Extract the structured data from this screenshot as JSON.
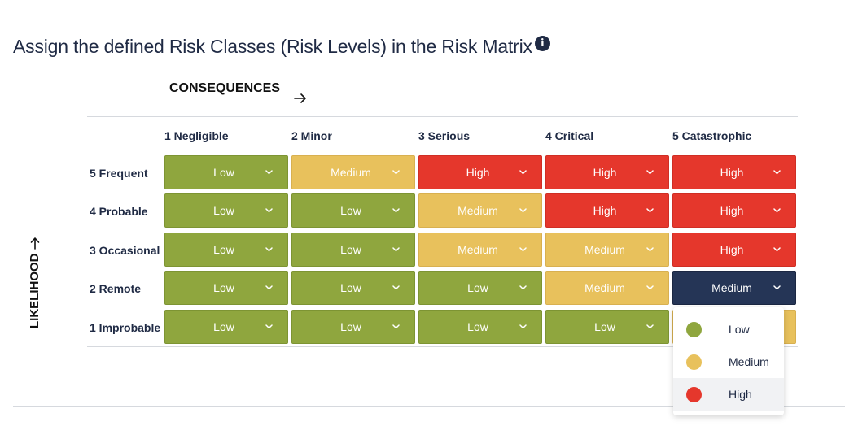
{
  "page_title": "Assign the defined Risk Classes (Risk Levels) in the Risk Matrix",
  "info_icon": "info-icon",
  "consequences_label": "CONSEQUENCES",
  "likelihood_label": "LIKELIHOOD",
  "colors": {
    "low": "#8fa63e",
    "medium": "#e8c15c",
    "high": "#e5372c",
    "selected": "#253556"
  },
  "columns": [
    "1 Negligible",
    "2 Minor",
    "3 Serious",
    "4 Critical",
    "5 Catastrophic"
  ],
  "rows": [
    {
      "label": "5 Frequent",
      "cells": [
        "Low",
        "Medium",
        "High",
        "High",
        "High"
      ]
    },
    {
      "label": "4 Probable",
      "cells": [
        "Low",
        "Low",
        "Medium",
        "High",
        "High"
      ]
    },
    {
      "label": "3 Occasional",
      "cells": [
        "Low",
        "Low",
        "Medium",
        "Medium",
        "High"
      ]
    },
    {
      "label": "2 Remote",
      "cells": [
        "Low",
        "Low",
        "Low",
        "Medium",
        "Medium"
      ]
    },
    {
      "label": "1 Improbable",
      "cells": [
        "Low",
        "Low",
        "Low",
        "Low",
        "Medium"
      ]
    }
  ],
  "open_select": {
    "row": 3,
    "col": 4
  },
  "dropdown": {
    "options": [
      {
        "label": "Low",
        "color": "#8fa63e"
      },
      {
        "label": "Medium",
        "color": "#e8c15c"
      },
      {
        "label": "High",
        "color": "#e5372c"
      }
    ],
    "hovered_index": 2
  }
}
